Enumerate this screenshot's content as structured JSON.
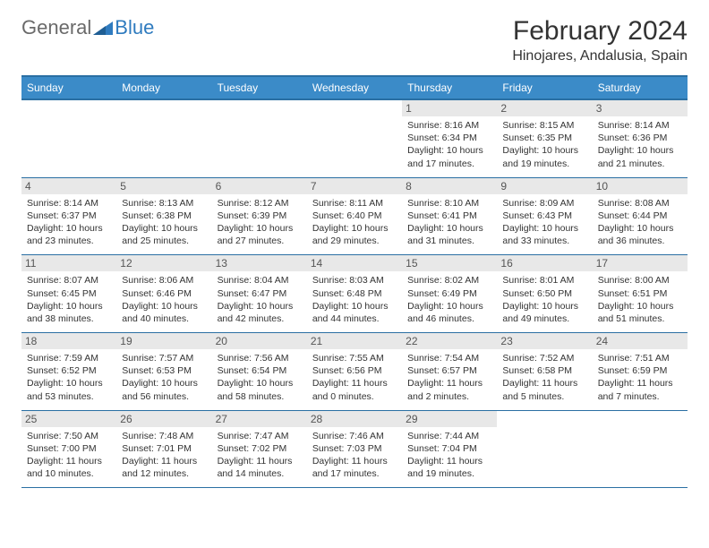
{
  "brand": {
    "gen": "General",
    "blue": "Blue"
  },
  "title": "February 2024",
  "location": "Hinojares, Andalusia, Spain",
  "colors": {
    "header_bg": "#3b8bc8",
    "header_border": "#2a6fa3",
    "date_bg": "#e8e8e8",
    "brand_blue": "#2f7bbf",
    "brand_gray": "#6a6a6a"
  },
  "day_names": [
    "Sunday",
    "Monday",
    "Tuesday",
    "Wednesday",
    "Thursday",
    "Friday",
    "Saturday"
  ],
  "weeks": [
    [
      {
        "empty": true
      },
      {
        "empty": true
      },
      {
        "empty": true
      },
      {
        "empty": true
      },
      {
        "day": "1",
        "sunrise": "8:16 AM",
        "sunset": "6:34 PM",
        "daylight": "10 hours and 17 minutes."
      },
      {
        "day": "2",
        "sunrise": "8:15 AM",
        "sunset": "6:35 PM",
        "daylight": "10 hours and 19 minutes."
      },
      {
        "day": "3",
        "sunrise": "8:14 AM",
        "sunset": "6:36 PM",
        "daylight": "10 hours and 21 minutes."
      }
    ],
    [
      {
        "day": "4",
        "sunrise": "8:14 AM",
        "sunset": "6:37 PM",
        "daylight": "10 hours and 23 minutes."
      },
      {
        "day": "5",
        "sunrise": "8:13 AM",
        "sunset": "6:38 PM",
        "daylight": "10 hours and 25 minutes."
      },
      {
        "day": "6",
        "sunrise": "8:12 AM",
        "sunset": "6:39 PM",
        "daylight": "10 hours and 27 minutes."
      },
      {
        "day": "7",
        "sunrise": "8:11 AM",
        "sunset": "6:40 PM",
        "daylight": "10 hours and 29 minutes."
      },
      {
        "day": "8",
        "sunrise": "8:10 AM",
        "sunset": "6:41 PM",
        "daylight": "10 hours and 31 minutes."
      },
      {
        "day": "9",
        "sunrise": "8:09 AM",
        "sunset": "6:43 PM",
        "daylight": "10 hours and 33 minutes."
      },
      {
        "day": "10",
        "sunrise": "8:08 AM",
        "sunset": "6:44 PM",
        "daylight": "10 hours and 36 minutes."
      }
    ],
    [
      {
        "day": "11",
        "sunrise": "8:07 AM",
        "sunset": "6:45 PM",
        "daylight": "10 hours and 38 minutes."
      },
      {
        "day": "12",
        "sunrise": "8:06 AM",
        "sunset": "6:46 PM",
        "daylight": "10 hours and 40 minutes."
      },
      {
        "day": "13",
        "sunrise": "8:04 AM",
        "sunset": "6:47 PM",
        "daylight": "10 hours and 42 minutes."
      },
      {
        "day": "14",
        "sunrise": "8:03 AM",
        "sunset": "6:48 PM",
        "daylight": "10 hours and 44 minutes."
      },
      {
        "day": "15",
        "sunrise": "8:02 AM",
        "sunset": "6:49 PM",
        "daylight": "10 hours and 46 minutes."
      },
      {
        "day": "16",
        "sunrise": "8:01 AM",
        "sunset": "6:50 PM",
        "daylight": "10 hours and 49 minutes."
      },
      {
        "day": "17",
        "sunrise": "8:00 AM",
        "sunset": "6:51 PM",
        "daylight": "10 hours and 51 minutes."
      }
    ],
    [
      {
        "day": "18",
        "sunrise": "7:59 AM",
        "sunset": "6:52 PM",
        "daylight": "10 hours and 53 minutes."
      },
      {
        "day": "19",
        "sunrise": "7:57 AM",
        "sunset": "6:53 PM",
        "daylight": "10 hours and 56 minutes."
      },
      {
        "day": "20",
        "sunrise": "7:56 AM",
        "sunset": "6:54 PM",
        "daylight": "10 hours and 58 minutes."
      },
      {
        "day": "21",
        "sunrise": "7:55 AM",
        "sunset": "6:56 PM",
        "daylight": "11 hours and 0 minutes."
      },
      {
        "day": "22",
        "sunrise": "7:54 AM",
        "sunset": "6:57 PM",
        "daylight": "11 hours and 2 minutes."
      },
      {
        "day": "23",
        "sunrise": "7:52 AM",
        "sunset": "6:58 PM",
        "daylight": "11 hours and 5 minutes."
      },
      {
        "day": "24",
        "sunrise": "7:51 AM",
        "sunset": "6:59 PM",
        "daylight": "11 hours and 7 minutes."
      }
    ],
    [
      {
        "day": "25",
        "sunrise": "7:50 AM",
        "sunset": "7:00 PM",
        "daylight": "11 hours and 10 minutes."
      },
      {
        "day": "26",
        "sunrise": "7:48 AM",
        "sunset": "7:01 PM",
        "daylight": "11 hours and 12 minutes."
      },
      {
        "day": "27",
        "sunrise": "7:47 AM",
        "sunset": "7:02 PM",
        "daylight": "11 hours and 14 minutes."
      },
      {
        "day": "28",
        "sunrise": "7:46 AM",
        "sunset": "7:03 PM",
        "daylight": "11 hours and 17 minutes."
      },
      {
        "day": "29",
        "sunrise": "7:44 AM",
        "sunset": "7:04 PM",
        "daylight": "11 hours and 19 minutes."
      },
      {
        "empty": true
      },
      {
        "empty": true
      }
    ]
  ],
  "labels": {
    "sunrise": "Sunrise: ",
    "sunset": "Sunset: ",
    "daylight": "Daylight: "
  }
}
